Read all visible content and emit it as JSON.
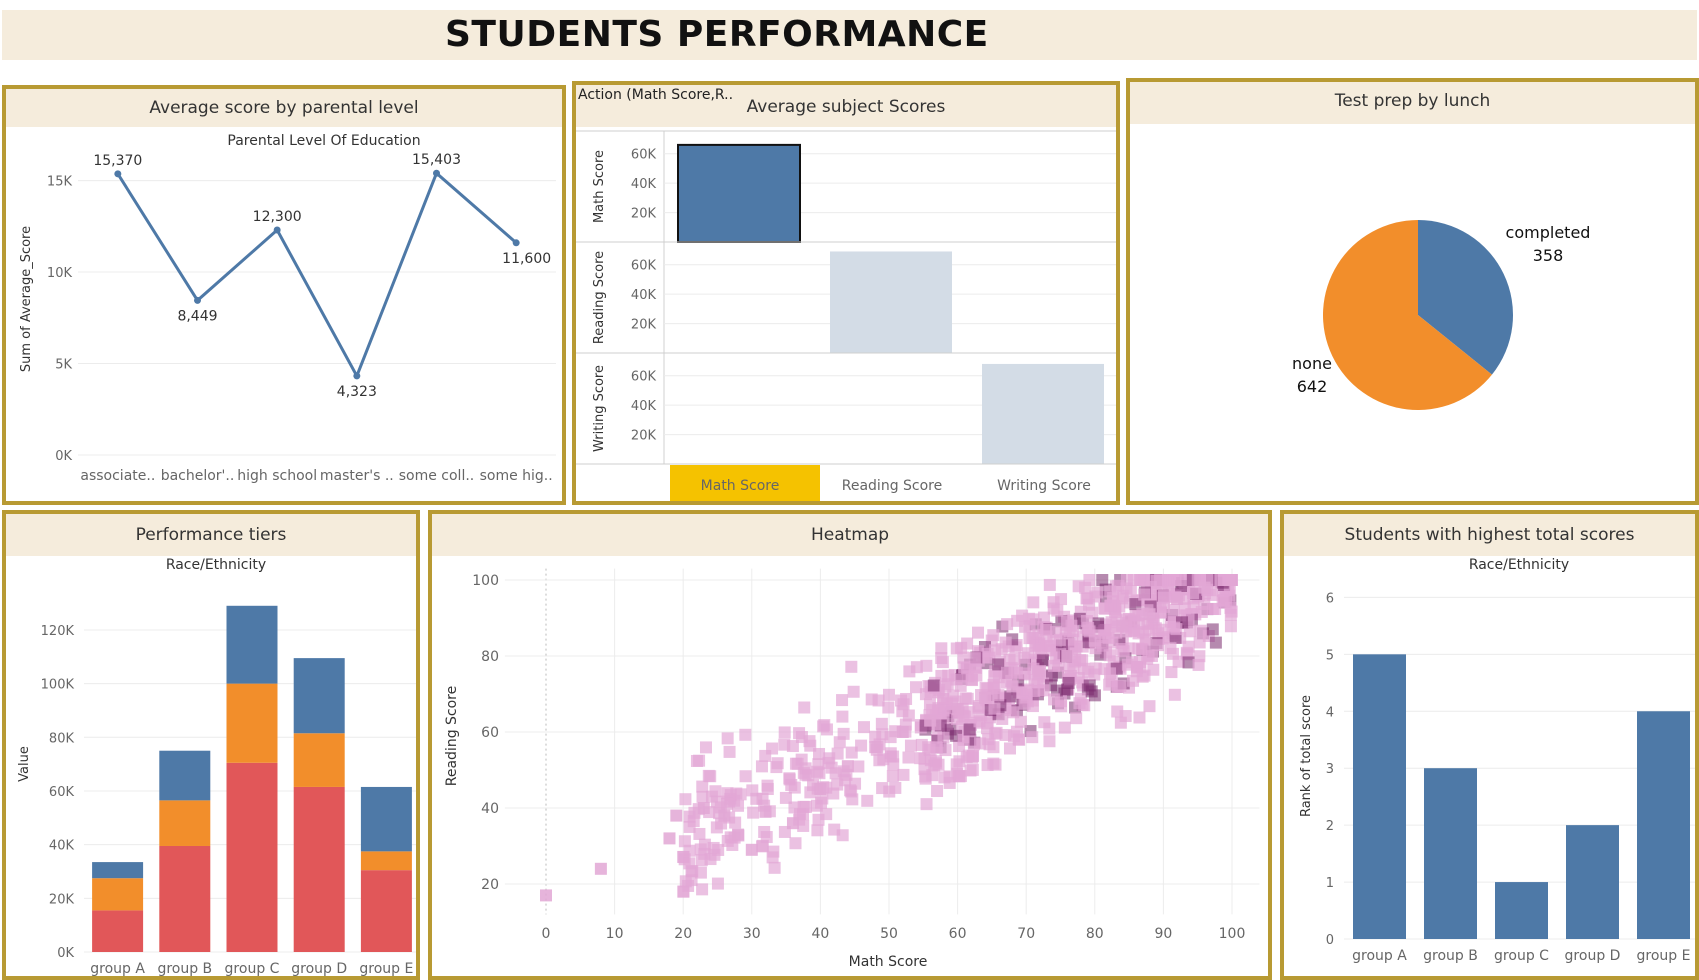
{
  "dashboard": {
    "title": "STUDENTS PERFORMANCE"
  },
  "panels": {
    "parental": {
      "title": "Average score by parental level"
    },
    "subject": {
      "title": "Average subject Scores",
      "action": "Action (Math Score,R.."
    },
    "testprep": {
      "title": "Test prep by lunch"
    },
    "tiers": {
      "title": "Performance tiers"
    },
    "heatmap": {
      "title": "Heatmap"
    },
    "highest": {
      "title": "Students with highest total scores"
    }
  },
  "chart_data": [
    {
      "id": "parental",
      "type": "line",
      "title": "Parental Level Of Education",
      "ylabel": "Sum of Average_Score",
      "categories": [
        "associate..",
        "bachelor'..",
        "high school",
        "master's ..",
        "some coll..",
        "some hig.."
      ],
      "values": [
        15370,
        8449,
        12300,
        4323,
        15403,
        11600
      ],
      "value_labels": [
        "15,370",
        "8,449",
        "12,300",
        "4,323",
        "15,403",
        "11,600"
      ],
      "ylim": [
        0,
        17000
      ],
      "yticks": [
        0,
        5000,
        10000,
        15000
      ],
      "ytick_labels": [
        "0K",
        "5K",
        "10K",
        "15K"
      ],
      "color": "#4e79a7"
    },
    {
      "id": "subject",
      "type": "bar",
      "categories": [
        "Math Score",
        "Reading Score",
        "Writing Score"
      ],
      "rows": [
        {
          "label": "Math Score",
          "value": 66000,
          "bar_index": 0,
          "color": "#4e79a7"
        },
        {
          "label": "Reading Score",
          "value": 69000,
          "bar_index": 1,
          "color": "#d3dce6"
        },
        {
          "label": "Writing Score",
          "value": 68000,
          "bar_index": 2,
          "color": "#d3dce6"
        }
      ],
      "ylim": [
        0,
        70000
      ],
      "yticks": [
        20000,
        40000,
        60000
      ],
      "ytick_labels": [
        "20K",
        "40K",
        "60K"
      ],
      "highlight_color": "#f5c200"
    },
    {
      "id": "testprep",
      "type": "pie",
      "slices": [
        {
          "label": "completed",
          "value": 358,
          "value_label": "358",
          "color": "#4e79a7"
        },
        {
          "label": "none",
          "value": 642,
          "value_label": "642",
          "color": "#f28e2b"
        }
      ]
    },
    {
      "id": "tiers",
      "type": "bar",
      "stacked": true,
      "title": "Race/Ethnicity",
      "ylabel": "Value",
      "categories": [
        "group A",
        "group B",
        "group C",
        "group D",
        "group E"
      ],
      "series": [
        {
          "color": "#e15759",
          "values": [
            15500,
            39500,
            70500,
            61500,
            30500
          ]
        },
        {
          "color": "#f28e2b",
          "values": [
            12000,
            17000,
            29500,
            20000,
            7000
          ]
        },
        {
          "color": "#4e79a7",
          "values": [
            6000,
            18500,
            29000,
            28000,
            24000
          ]
        }
      ],
      "ylim": [
        0,
        136000
      ],
      "yticks": [
        0,
        20000,
        40000,
        60000,
        80000,
        100000,
        120000
      ],
      "ytick_labels": [
        "0K",
        "20K",
        "40K",
        "60K",
        "80K",
        "100K",
        "120K"
      ]
    },
    {
      "id": "heatmap",
      "type": "heatmap",
      "xlabel": "Math Score",
      "ylabel": "Reading Score",
      "xlim": [
        -6,
        104
      ],
      "ylim": [
        10,
        104
      ],
      "xticks": [
        0,
        10,
        20,
        30,
        40,
        50,
        60,
        70,
        80,
        90,
        100
      ],
      "yticks": [
        20,
        40,
        60,
        80,
        100
      ],
      "color": "#e2a7d5",
      "dark_color": "#7a2a6e",
      "sample_points": [
        [
          0,
          17
        ],
        [
          8,
          24
        ],
        [
          18,
          32
        ],
        [
          19,
          38
        ],
        [
          23,
          40
        ],
        [
          26,
          38
        ],
        [
          28,
          33
        ],
        [
          30,
          29
        ],
        [
          32,
          39
        ],
        [
          36,
          36
        ],
        [
          40,
          45
        ],
        [
          44,
          51
        ],
        [
          48,
          56
        ],
        [
          52,
          60
        ],
        [
          56,
          63
        ],
        [
          60,
          66
        ],
        [
          64,
          69
        ],
        [
          68,
          72
        ],
        [
          72,
          76
        ],
        [
          76,
          80
        ],
        [
          80,
          84
        ],
        [
          84,
          88
        ],
        [
          88,
          91
        ],
        [
          92,
          95
        ],
        [
          96,
          98
        ],
        [
          100,
          100
        ]
      ]
    },
    {
      "id": "highest",
      "type": "bar",
      "title": "Race/Ethnicity",
      "ylabel": "Rank of total score",
      "categories": [
        "group A",
        "group B",
        "group C",
        "group D",
        "group E"
      ],
      "values": [
        5,
        3,
        1,
        2,
        4
      ],
      "ylim": [
        0,
        6.2
      ],
      "yticks": [
        0,
        1,
        2,
        3,
        4,
        5,
        6
      ],
      "color": "#4e79a7"
    }
  ]
}
